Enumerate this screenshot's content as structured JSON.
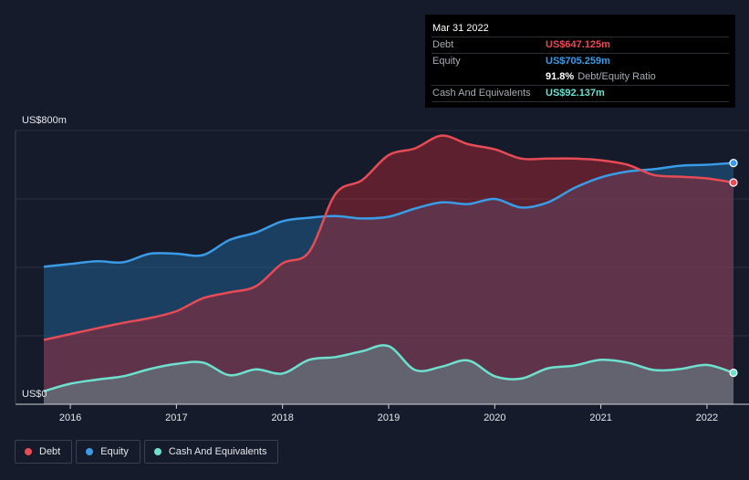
{
  "tooltip": {
    "date": "Mar 31 2022",
    "debt_label": "Debt",
    "debt_value": "US$647.125m",
    "equity_label": "Equity",
    "equity_value": "US$705.259m",
    "ratio_value": "91.8%",
    "ratio_label": "Debt/Equity Ratio",
    "cash_label": "Cash And Equivalents",
    "cash_value": "US$92.137m"
  },
  "legend": {
    "debt": "Debt",
    "equity": "Equity",
    "cash": "Cash And Equivalents"
  },
  "colors": {
    "background": "#151b2b",
    "debt": "#e64b56",
    "equity": "#3a9be6",
    "cash": "#6ee0cf"
  },
  "chart_data": {
    "type": "area",
    "title": "",
    "xlabel": "",
    "ylabel": "",
    "y_top_label": "US$800m",
    "y_bottom_label": "US$0",
    "ylim": [
      0,
      800
    ],
    "xlim": [
      2015.75,
      2022.25
    ],
    "x_ticks": [
      {
        "value": 2016,
        "label": "2016"
      },
      {
        "value": 2017,
        "label": "2017"
      },
      {
        "value": 2018,
        "label": "2018"
      },
      {
        "value": 2019,
        "label": "2019"
      },
      {
        "value": 2020,
        "label": "2020"
      },
      {
        "value": 2021,
        "label": "2021"
      },
      {
        "value": 2022,
        "label": "2022"
      }
    ],
    "gridlines": [
      200,
      400,
      600,
      800
    ],
    "series": [
      {
        "name": "Equity",
        "key": "equity",
        "points": [
          [
            2015.75,
            402
          ],
          [
            2016.0,
            410
          ],
          [
            2016.25,
            418
          ],
          [
            2016.5,
            415
          ],
          [
            2016.75,
            440
          ],
          [
            2017.0,
            440
          ],
          [
            2017.25,
            436
          ],
          [
            2017.5,
            480
          ],
          [
            2017.75,
            502
          ],
          [
            2018.0,
            535
          ],
          [
            2018.25,
            545
          ],
          [
            2018.5,
            550
          ],
          [
            2018.75,
            543
          ],
          [
            2019.0,
            548
          ],
          [
            2019.25,
            572
          ],
          [
            2019.5,
            590
          ],
          [
            2019.75,
            585
          ],
          [
            2020.0,
            600
          ],
          [
            2020.25,
            575
          ],
          [
            2020.5,
            590
          ],
          [
            2020.75,
            632
          ],
          [
            2021.0,
            663
          ],
          [
            2021.25,
            680
          ],
          [
            2021.5,
            687
          ],
          [
            2021.75,
            697
          ],
          [
            2022.0,
            700
          ],
          [
            2022.25,
            705
          ]
        ]
      },
      {
        "name": "Debt",
        "key": "debt",
        "points": [
          [
            2015.75,
            188
          ],
          [
            2016.0,
            205
          ],
          [
            2016.25,
            222
          ],
          [
            2016.5,
            238
          ],
          [
            2016.75,
            252
          ],
          [
            2017.0,
            272
          ],
          [
            2017.25,
            310
          ],
          [
            2017.5,
            327
          ],
          [
            2017.75,
            345
          ],
          [
            2018.0,
            412
          ],
          [
            2018.25,
            445
          ],
          [
            2018.5,
            615
          ],
          [
            2018.75,
            655
          ],
          [
            2019.0,
            728
          ],
          [
            2019.25,
            748
          ],
          [
            2019.5,
            785
          ],
          [
            2019.75,
            760
          ],
          [
            2020.0,
            745
          ],
          [
            2020.25,
            718
          ],
          [
            2020.5,
            718
          ],
          [
            2020.75,
            718
          ],
          [
            2021.0,
            713
          ],
          [
            2021.25,
            700
          ],
          [
            2021.5,
            670
          ],
          [
            2021.75,
            665
          ],
          [
            2022.0,
            660
          ],
          [
            2022.25,
            648
          ]
        ]
      },
      {
        "name": "Cash And Equivalents",
        "key": "cash",
        "points": [
          [
            2015.75,
            38
          ],
          [
            2016.0,
            60
          ],
          [
            2016.25,
            72
          ],
          [
            2016.5,
            82
          ],
          [
            2016.75,
            103
          ],
          [
            2017.0,
            118
          ],
          [
            2017.25,
            122
          ],
          [
            2017.5,
            85
          ],
          [
            2017.75,
            102
          ],
          [
            2018.0,
            90
          ],
          [
            2018.25,
            130
          ],
          [
            2018.5,
            138
          ],
          [
            2018.75,
            155
          ],
          [
            2019.0,
            170
          ],
          [
            2019.25,
            100
          ],
          [
            2019.5,
            110
          ],
          [
            2019.75,
            128
          ],
          [
            2020.0,
            82
          ],
          [
            2020.25,
            75
          ],
          [
            2020.5,
            105
          ],
          [
            2020.75,
            113
          ],
          [
            2021.0,
            130
          ],
          [
            2021.25,
            122
          ],
          [
            2021.5,
            100
          ],
          [
            2021.75,
            103
          ],
          [
            2022.0,
            115
          ],
          [
            2022.25,
            92
          ]
        ]
      }
    ]
  }
}
